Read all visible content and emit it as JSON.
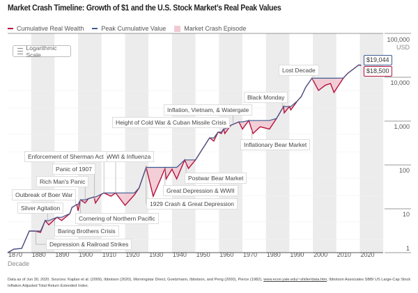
{
  "title": "Market Crash Timeline: Growth of $1 and the U.S. Stock Market’s Real Peak Values",
  "legend": {
    "wealth": "Cumulative Real Wealth",
    "peak": "Peak Cumulative Value",
    "crash": "Market Crash Episode"
  },
  "scale_button": {
    "label": "Logarithmic Scale",
    "icon": "list-icon"
  },
  "colors": {
    "wealth": "#b5123f",
    "peak": "#3b5b8f",
    "crash": "#f2c9d3",
    "band": "#e6e6e6"
  },
  "footnote": {
    "pre": "Data as of Jun 30, 2020. Sources: Kaplan et al. (2009), Ibbotson (2020), Morningstar Direct, Goetzmann, Ibbotson, and Peng (2000), Pierce (1982),",
    "link": "www.econ.yale.edu/~shiller/data.htm",
    "post": ", Ibbotson Associates SBBI US Large-Cap Stock Inflation Adjusted Total Return Extended Index."
  },
  "chart_data": {
    "type": "line",
    "title": "Market Crash Timeline: Growth of $1 and the U.S. Stock Market’s Real Peak Values",
    "xlabel": "Decade",
    "ylabel_unit": "USD",
    "y_scale": "log",
    "xlim": [
      1870,
      2030
    ],
    "ylim": [
      1,
      100000
    ],
    "x_ticks": [
      "1870",
      "1880",
      "1890",
      "1900",
      "1910",
      "1920",
      "1930",
      "1940",
      "1950",
      "1960",
      "1970",
      "1980",
      "1990",
      "2000",
      "2010",
      "2020"
    ],
    "y_ticks": [
      "100,000",
      "10,000",
      "1,000",
      "100",
      "10",
      "1"
    ],
    "shaded_decades": [
      1880,
      1900,
      1920,
      1940,
      1960,
      1980,
      2000,
      2020
    ],
    "series": [
      {
        "name": "Cumulative Real Wealth",
        "values": [
          [
            1870,
            1
          ],
          [
            1872.6,
            1.2
          ],
          [
            1876,
            1.25
          ],
          [
            1879.2,
            3.1
          ],
          [
            1881.6,
            3.1
          ],
          [
            1884,
            2.9
          ],
          [
            1886,
            5.4
          ],
          [
            1887.5,
            4.3
          ],
          [
            1891,
            6.4
          ],
          [
            1893,
            5.4
          ],
          [
            1896.5,
            7.8
          ],
          [
            1897.4,
            10.7
          ],
          [
            1899.4,
            12.5
          ],
          [
            1900,
            9
          ],
          [
            1901,
            16
          ],
          [
            1903,
            13.5
          ],
          [
            1904.4,
            17
          ],
          [
            1906.8,
            18.6
          ],
          [
            1907.4,
            13.5
          ],
          [
            1910,
            21.6
          ],
          [
            1911,
            23
          ],
          [
            1914,
            19.3
          ],
          [
            1916,
            23
          ],
          [
            1920,
            12
          ],
          [
            1924,
            20.8
          ],
          [
            1926,
            30
          ],
          [
            1929,
            88
          ],
          [
            1932,
            19.3
          ],
          [
            1935,
            46
          ],
          [
            1937,
            83
          ],
          [
            1937.5,
            48
          ],
          [
            1940,
            80
          ],
          [
            1942,
            48
          ],
          [
            1945.4,
            130
          ],
          [
            1947,
            83
          ],
          [
            1950,
            130
          ],
          [
            1956,
            415
          ],
          [
            1957.8,
            350
          ],
          [
            1959.6,
            560
          ],
          [
            1961,
            520
          ],
          [
            1962,
            660
          ],
          [
            1962.5,
            520
          ],
          [
            1965,
            800
          ],
          [
            1968.5,
            960
          ],
          [
            1970,
            660
          ],
          [
            1972.7,
            1030
          ],
          [
            1974.5,
            520
          ],
          [
            1977.5,
            740
          ],
          [
            1981.5,
            660
          ],
          [
            1984.5,
            1150
          ],
          [
            1987.5,
            2150
          ],
          [
            1987.8,
            1540
          ],
          [
            1990,
            2150
          ],
          [
            1990.6,
            1800
          ],
          [
            1993.4,
            2900
          ],
          [
            1995,
            3600
          ],
          [
            1997,
            6000
          ],
          [
            1999.6,
            9500
          ],
          [
            2002.4,
            5000
          ],
          [
            2005.3,
            6600
          ],
          [
            2007.5,
            7200
          ],
          [
            2009,
            4500
          ],
          [
            2013,
            9600
          ],
          [
            2015,
            12500
          ],
          [
            2018,
            16500
          ],
          [
            2019.5,
            19044
          ],
          [
            2020.5,
            18500
          ]
        ]
      },
      {
        "name": "Peak Cumulative Value",
        "derived_from": "running maximum of Cumulative Real Wealth"
      }
    ],
    "end_labels": {
      "peak": "$19,044",
      "wealth": "$18,500"
    },
    "annotations": [
      {
        "text": "Lost Decade",
        "year": 2000
      },
      {
        "text": "Black Monday",
        "year": 1987
      },
      {
        "text": "Inflation, Vietnam, & Watergate",
        "year": 1966
      },
      {
        "text": "Height of Cold War & Cuban Missile Crisis",
        "year": 1962
      },
      {
        "text": "Inflationary Bear Market",
        "year": 1974
      },
      {
        "text": "Postwar Bear Market",
        "year": 1946
      },
      {
        "text": "Great Depression & WWII",
        "year": 1937
      },
      {
        "text": "1929 Crash & Great Depression",
        "year": 1929
      },
      {
        "text": "WWI & Influenza",
        "year": 1916
      },
      {
        "text": "Enforcement of Sherman Act",
        "year": 1911
      },
      {
        "text": "Panic of 1907",
        "year": 1907
      },
      {
        "text": "Rich Man's Panic",
        "year": 1903
      },
      {
        "text": "Outbreak of Boer War",
        "year": 1899
      },
      {
        "text": "Silver Agitation",
        "year": 1887
      },
      {
        "text": "Cornering of Northern Pacific",
        "year": 1901
      },
      {
        "text": "Baring Brothers Crisis",
        "year": 1890
      },
      {
        "text": "Depression & Railroad Strikes",
        "year": 1882
      }
    ]
  }
}
